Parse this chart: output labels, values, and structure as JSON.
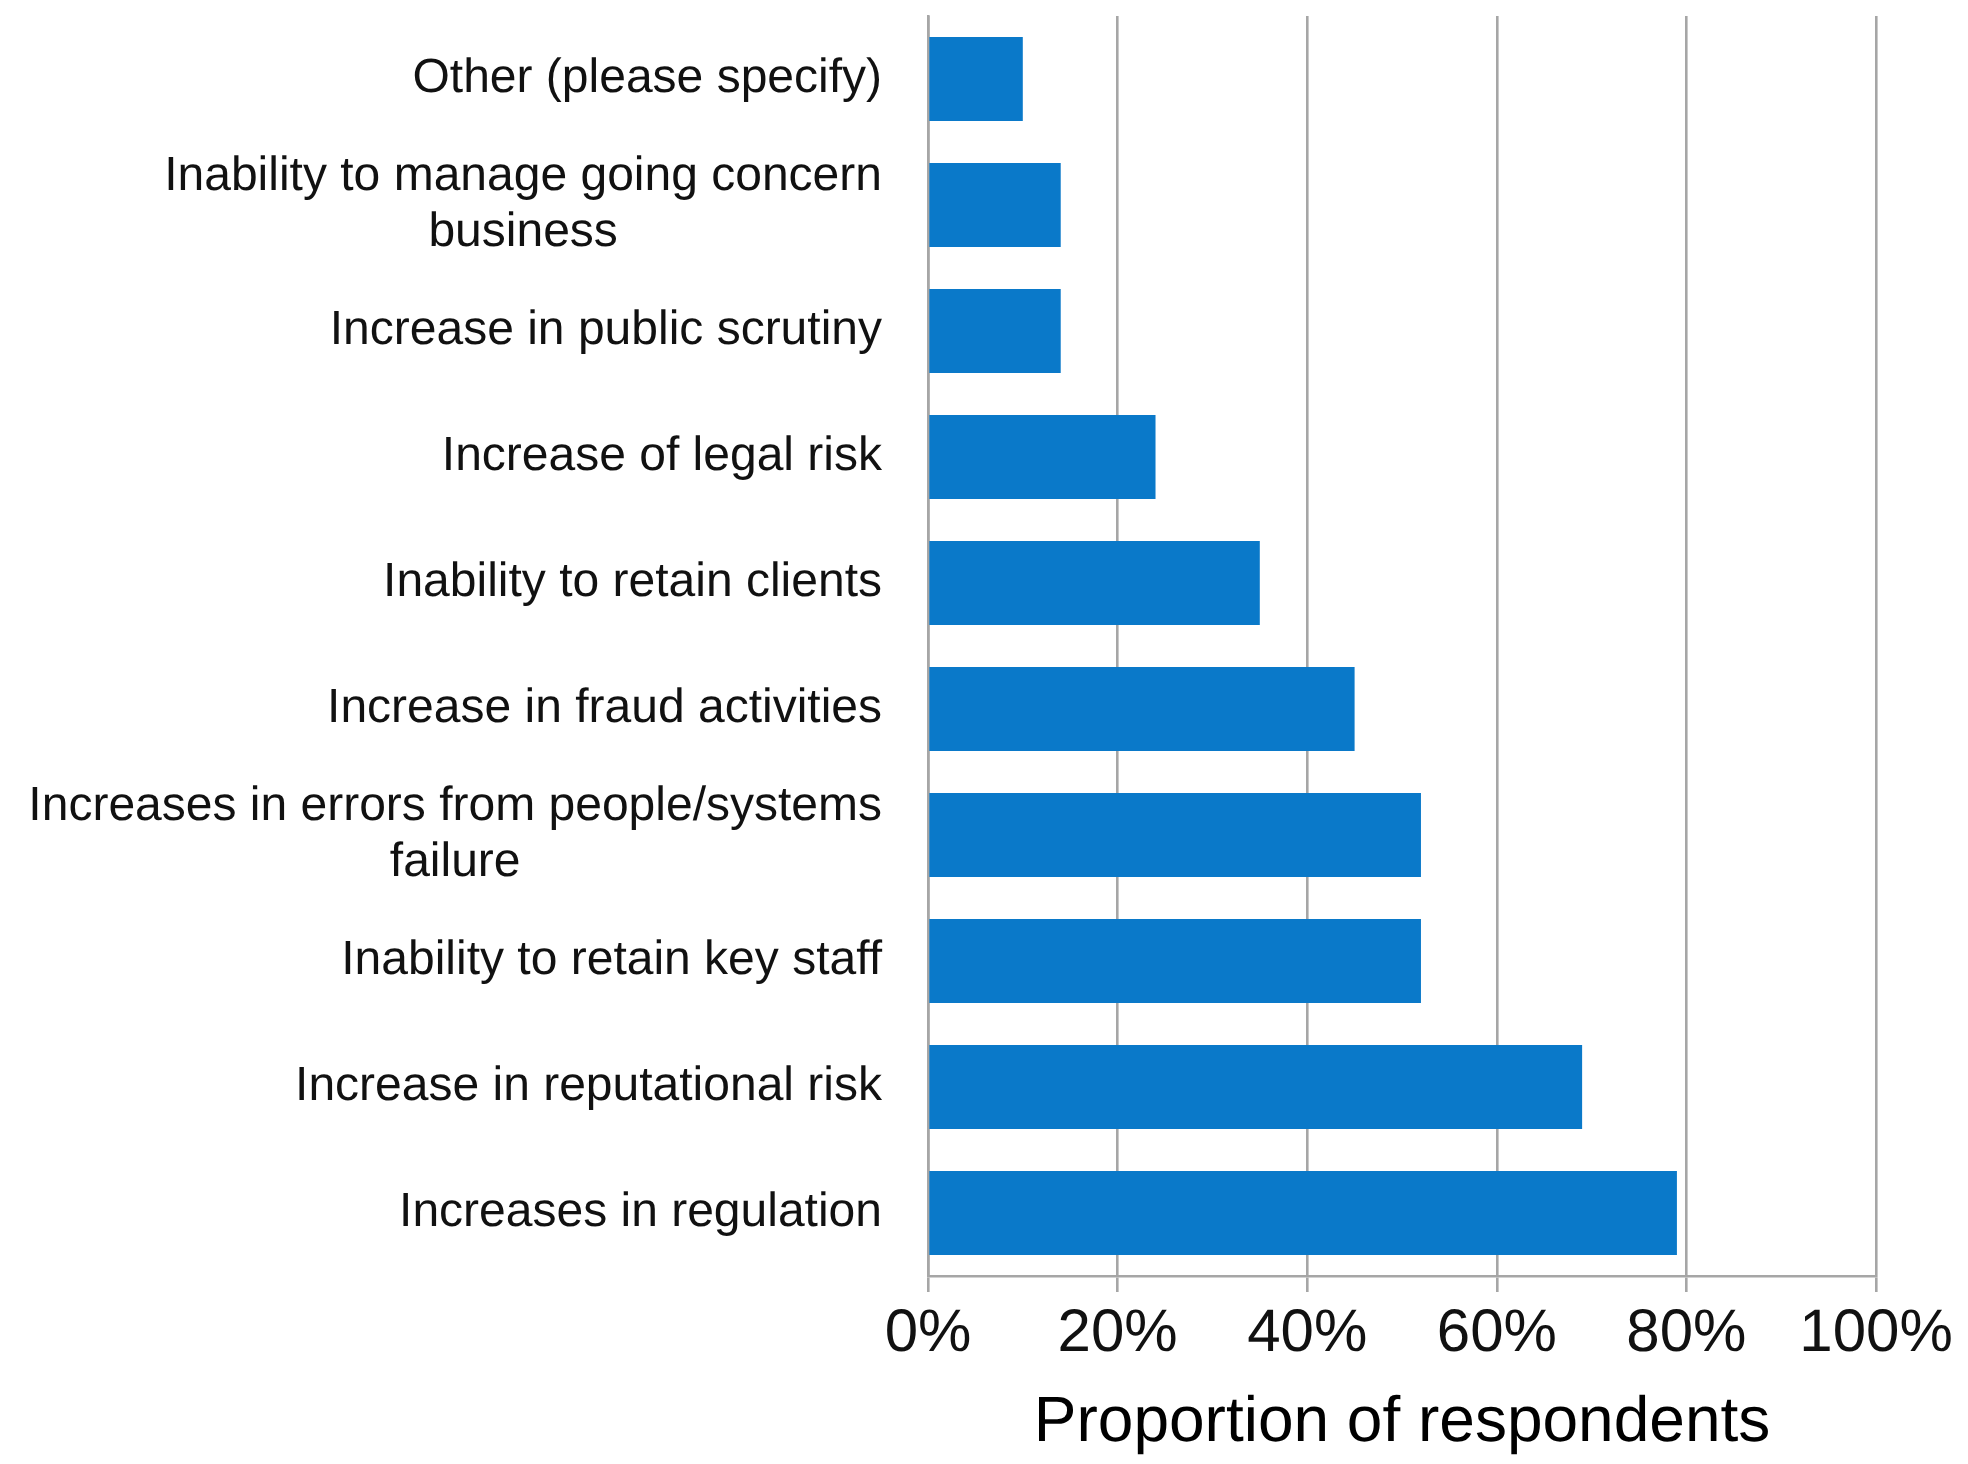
{
  "chart_data": {
    "type": "bar",
    "orientation": "horizontal",
    "categories": [
      "Other (please specify)",
      "Inability to manage going concern business",
      "Increase in public scrutiny",
      "Increase of legal risk",
      "Inability to retain clients",
      "Increase in fraud activities",
      "Increases in errors from people/systems failure",
      "Inability to retain key staff",
      "Increase in reputational risk",
      "Increases in regulation"
    ],
    "values": [
      10,
      14,
      14,
      24,
      35,
      45,
      52,
      52,
      69,
      79
    ],
    "color": "#0a79c9",
    "xlabel": "Proportion of respondents",
    "xlim": [
      0,
      100
    ],
    "xticks": [
      {
        "value": 0,
        "label": "0%"
      },
      {
        "value": 20,
        "label": "20%"
      },
      {
        "value": 40,
        "label": "40%"
      },
      {
        "value": 60,
        "label": "60%"
      },
      {
        "value": 80,
        "label": "80%"
      },
      {
        "value": 100,
        "label": "100%"
      }
    ],
    "grid": "x"
  }
}
